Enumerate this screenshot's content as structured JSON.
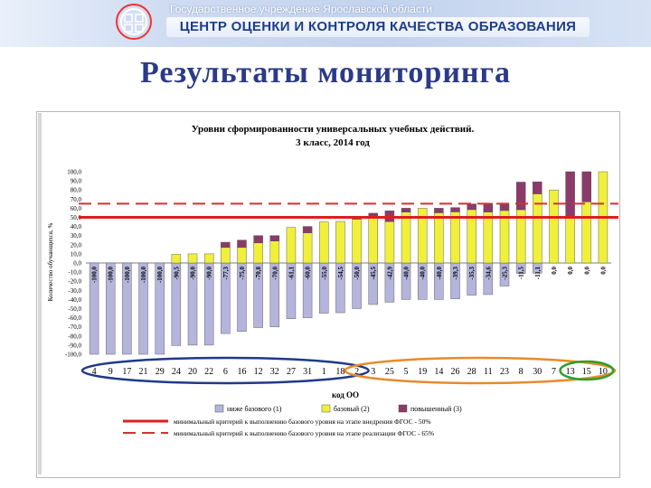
{
  "banner": {
    "line1": "Государственное учреждение Ярославской области",
    "line2": "ЦЕНТР ОЦЕНКИ И КОНТРОЛЯ КАЧЕСТВА ОБРАЗОВАНИЯ"
  },
  "page": {
    "title": "Результаты  мониторинга"
  },
  "chart_data": {
    "type": "bar",
    "title": "Уровни сформированности универсальных учебных действий.",
    "subtitle": "3 класс, 2014 год",
    "xlabel": "код  ОО",
    "ylabel": "Количество обучающихся, %",
    "ylim": [
      -100,
      100
    ],
    "yticks": [
      "100,0",
      "90,0",
      "80,0",
      "70,0",
      "60,0",
      "50,0",
      "40,0",
      "30,0",
      "20,0",
      "10,0",
      "0,0",
      "-10,0",
      "-20,0",
      "-30,0",
      "-40,0",
      "-50,0",
      "-60,0",
      "-70,0",
      "-80,0",
      "-90,0",
      "-100,0"
    ],
    "categories": [
      "4",
      "9",
      "17",
      "21",
      "29",
      "24",
      "20",
      "22",
      "6",
      "16",
      "12",
      "32",
      "27",
      "31",
      "1",
      "18",
      "2",
      "3",
      "25",
      "5",
      "19",
      "14",
      "26",
      "28",
      "11",
      "23",
      "8",
      "30",
      "7",
      "13",
      "15",
      "10"
    ],
    "series": [
      {
        "name": "ниже базового (1)",
        "color": "#b4b4dc",
        "values": [
          -100,
          -100,
          -100,
          -100,
          -100,
          -90.5,
          -90,
          -90,
          -77.3,
          -75,
          -70.8,
          -70,
          -61.1,
          -60,
          -55,
          -54.5,
          -50,
          -45.5,
          -42.9,
          -40,
          -40,
          -40,
          -39.3,
          -35.3,
          -34.6,
          -25.3,
          -11.5,
          -11.1,
          0,
          0,
          0,
          0
        ]
      },
      {
        "name": "базовый (2)",
        "color": "#f0f03a",
        "values": [
          0,
          0,
          0,
          0,
          0,
          9.5,
          10,
          10,
          17,
          17,
          22,
          24,
          38.9,
          33,
          45,
          45.5,
          48,
          50,
          45.3,
          55.8,
          60,
          55,
          56,
          58.5,
          55.8,
          57.5,
          58.4,
          75.7,
          80,
          50,
          67,
          100
        ]
      },
      {
        "name": "повышенный (3)",
        "color": "#8c3a6a",
        "values": [
          0,
          0,
          0,
          0,
          0,
          0,
          0,
          0,
          5.7,
          8,
          8,
          6,
          0,
          7,
          0,
          0,
          2,
          4.5,
          11.8,
          4.2,
          0,
          5,
          4.7,
          6.2,
          9.6,
          7.2,
          30.2,
          13.2,
          0,
          50,
          33,
          0
        ]
      }
    ],
    "value_labels": [
      "-100,0",
      "-100,0",
      "-100,0",
      "-100,0",
      "-100,0",
      "-90,5",
      "-90,0",
      "-90,0",
      "-77,3",
      "-75,0",
      "-70,8",
      "-70,0",
      "-61,1",
      "-60,0",
      "-55,0",
      "-54,5",
      "-50,0",
      "-45,5",
      "-42,9",
      "-40,0",
      "-40,0",
      "-40,0",
      "-39,3",
      "-35,3",
      "-34,6",
      "-25,3",
      "-11,5",
      "-11,1",
      "0,0",
      "0,0",
      "0,0",
      "0,0"
    ],
    "reference_lines": [
      {
        "label": "минимальный критерий к выполнению базового уровня на этапе внедрения ФГОС - 50%",
        "value": 50,
        "style": "solid",
        "color": "#e01e1e"
      },
      {
        "label": "минимальный критерий к выполнению базового уровня на этапе реализации ФГОС - 65%",
        "value": 65,
        "style": "dashed",
        "color": "#d23232"
      }
    ],
    "highlight_groups": [
      {
        "color": "#1f3a8a",
        "categories": [
          "4",
          "9",
          "17",
          "21",
          "29",
          "24",
          "20",
          "22",
          "6",
          "16",
          "12",
          "32",
          "27",
          "31",
          "1",
          "18",
          "2"
        ]
      },
      {
        "color": "#e88a2a",
        "categories": [
          "2",
          "3",
          "25",
          "5",
          "19",
          "14",
          "26",
          "28",
          "11",
          "23",
          "8",
          "30",
          "7",
          "13",
          "15",
          "10"
        ]
      },
      {
        "color": "#2aa02a",
        "categories": [
          "13",
          "15",
          "10"
        ]
      }
    ],
    "legend_position": "bottom",
    "grid": false
  }
}
